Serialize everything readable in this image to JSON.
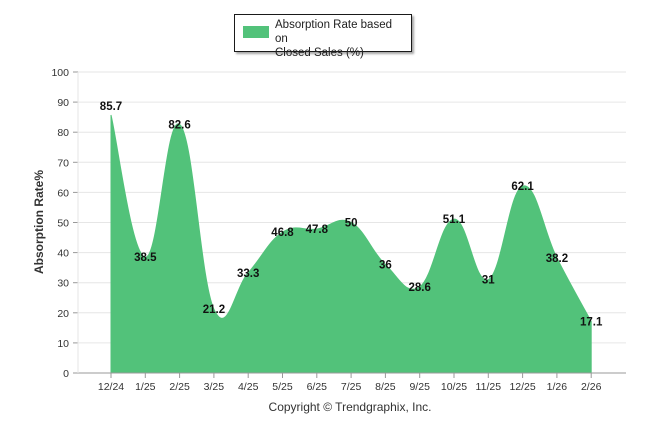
{
  "chart_data": {
    "type": "area",
    "title": "",
    "xlabel": "",
    "ylabel": "Absorption Rate%",
    "ylim": [
      0,
      100
    ],
    "yticks": [
      0,
      10,
      20,
      30,
      40,
      50,
      60,
      70,
      80,
      90,
      100
    ],
    "grid": true,
    "legend_position": "top-center",
    "categories": [
      "12/24",
      "1/25",
      "2/25",
      "3/25",
      "4/25",
      "5/25",
      "6/25",
      "7/25",
      "8/25",
      "9/25",
      "10/25",
      "11/25",
      "12/25",
      "1/26",
      "2/26"
    ],
    "series": [
      {
        "name": "Absorption Rate based on Closed Sales (%)",
        "color": "#52c27a",
        "values": [
          85.7,
          38.5,
          82.6,
          21.2,
          33.3,
          46.8,
          47.8,
          50,
          36,
          28.6,
          51.1,
          31,
          62.1,
          38.2,
          17.1
        ],
        "labels": [
          "85.7",
          "38.5",
          "82.6",
          "21.2",
          "33.3",
          "46.8",
          "47.8",
          "50",
          "36",
          "28.6",
          "51.1",
          "31",
          "62.1",
          "38.2",
          "17.1"
        ]
      }
    ]
  },
  "legend": {
    "label_line1": "Absorption Rate based on",
    "label_line2": "Closed Sales (%)"
  },
  "footer": {
    "copyright": "Copyright © Trendgraphix, Inc."
  },
  "colors": {
    "series": "#52c27a",
    "grid": "#e6e6e6",
    "axis": "#999999"
  }
}
